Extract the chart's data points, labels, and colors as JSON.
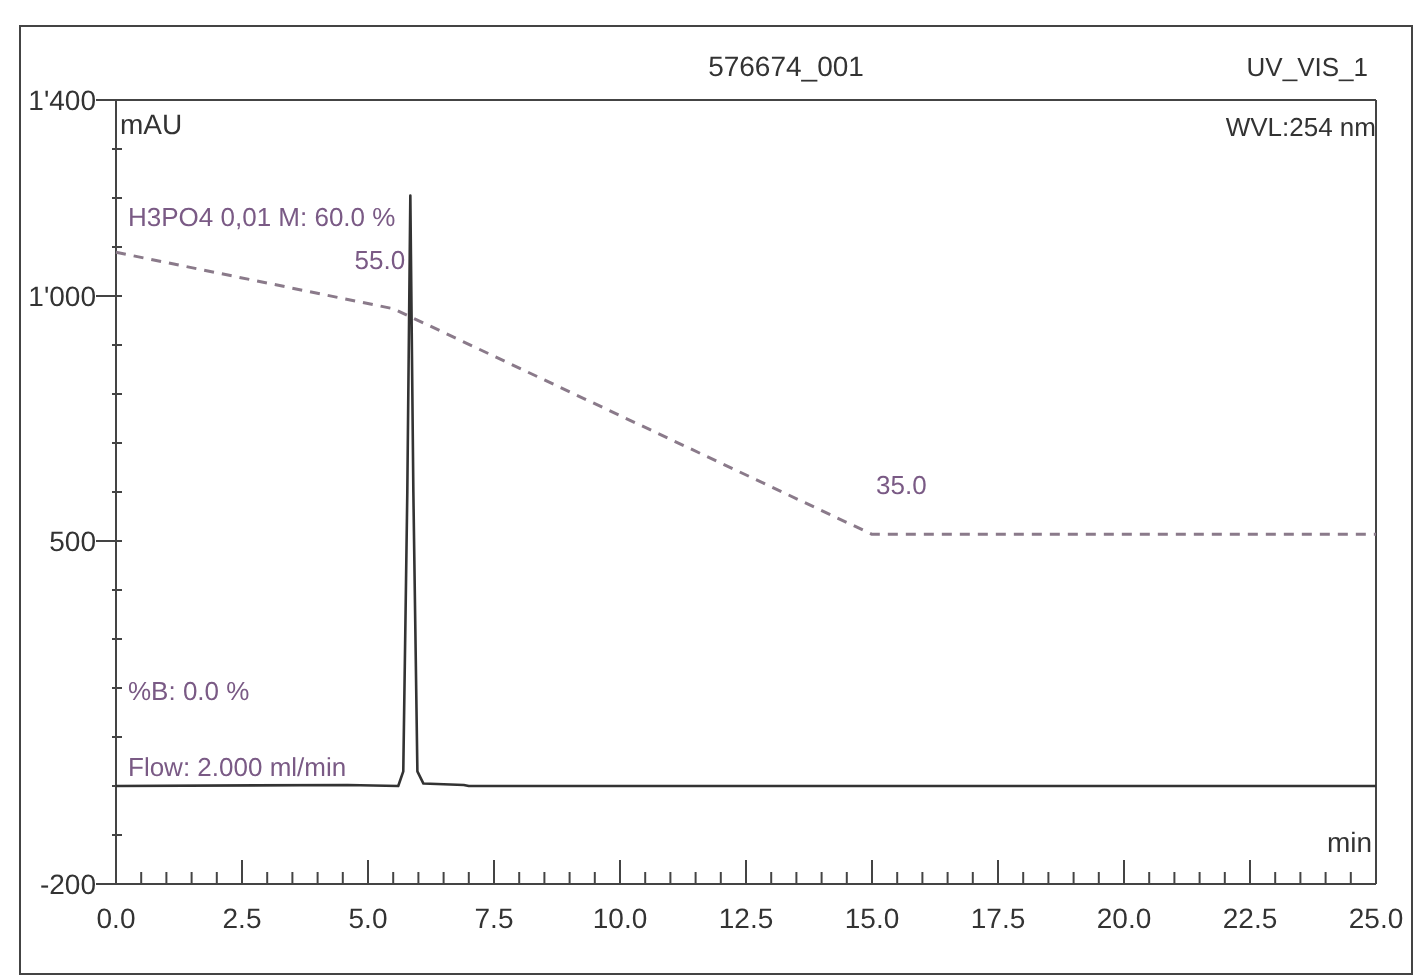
{
  "chart_data": {
    "type": "line",
    "title": "576674_001",
    "xlabel": "min",
    "ylabel": "mAU",
    "annotations": [
      "UV_VIS_1",
      "WVL:254 nm",
      "H3PO4 0,01 M: 60.0 %",
      "%B: 0.0 %",
      "Flow: 2.000 ml/min"
    ],
    "xlim": [
      0,
      25
    ],
    "ylim": [
      -200,
      1400
    ],
    "y2lim": [
      4,
      73.5
    ],
    "xticks": [
      {
        "value": 0,
        "label": "0.0"
      },
      {
        "value": 0.5,
        "label": null
      },
      {
        "value": 1,
        "label": null
      },
      {
        "value": 1.5,
        "label": null
      },
      {
        "value": 2,
        "label": null
      },
      {
        "value": 2.5,
        "label": "2.5"
      },
      {
        "value": 3,
        "label": null
      },
      {
        "value": 3.5,
        "label": null
      },
      {
        "value": 4,
        "label": null
      },
      {
        "value": 4.5,
        "label": null
      },
      {
        "value": 5,
        "label": "5.0"
      },
      {
        "value": 5.5,
        "label": null
      },
      {
        "value": 6,
        "label": null
      },
      {
        "value": 6.5,
        "label": null
      },
      {
        "value": 7,
        "label": null
      },
      {
        "value": 7.5,
        "label": "7.5"
      },
      {
        "value": 8,
        "label": null
      },
      {
        "value": 8.5,
        "label": null
      },
      {
        "value": 9,
        "label": null
      },
      {
        "value": 9.5,
        "label": null
      },
      {
        "value": 10,
        "label": "10.0"
      },
      {
        "value": 10.5,
        "label": null
      },
      {
        "value": 11,
        "label": null
      },
      {
        "value": 11.5,
        "label": null
      },
      {
        "value": 12,
        "label": null
      },
      {
        "value": 12.5,
        "label": "12.5"
      },
      {
        "value": 13,
        "label": null
      },
      {
        "value": 13.5,
        "label": null
      },
      {
        "value": 14,
        "label": null
      },
      {
        "value": 14.5,
        "label": null
      },
      {
        "value": 15,
        "label": "15.0"
      },
      {
        "value": 15.5,
        "label": null
      },
      {
        "value": 16,
        "label": null
      },
      {
        "value": 16.5,
        "label": null
      },
      {
        "value": 17,
        "label": null
      },
      {
        "value": 17.5,
        "label": "17.5"
      },
      {
        "value": 18,
        "label": null
      },
      {
        "value": 18.5,
        "label": null
      },
      {
        "value": 19,
        "label": null
      },
      {
        "value": 19.5,
        "label": null
      },
      {
        "value": 20,
        "label": "20.0"
      },
      {
        "value": 20.5,
        "label": null
      },
      {
        "value": 21,
        "label": null
      },
      {
        "value": 21.5,
        "label": null
      },
      {
        "value": 22,
        "label": null
      },
      {
        "value": 22.5,
        "label": "22.5"
      },
      {
        "value": 23,
        "label": null
      },
      {
        "value": 23.5,
        "label": null
      },
      {
        "value": 24,
        "label": null
      },
      {
        "value": 24.5,
        "label": null
      },
      {
        "value": 25,
        "label": "25.0"
      }
    ],
    "yticks": [
      -200,
      {
        "value": -100,
        "label": null
      },
      {
        "value": 0,
        "label": null
      },
      {
        "value": 100,
        "label": null
      },
      {
        "value": 200,
        "label": null
      },
      {
        "value": 300,
        "label": null
      },
      {
        "value": 400,
        "label": null
      },
      500,
      {
        "value": 600,
        "label": null
      },
      {
        "value": 700,
        "label": null
      },
      {
        "value": 800,
        "label": null
      },
      {
        "value": 900,
        "label": null
      },
      {
        "value": 1000,
        "label": "1'000"
      },
      {
        "value": 1100,
        "label": null
      },
      {
        "value": 1200,
        "label": null
      },
      {
        "value": 1300,
        "label": null
      },
      {
        "value": 1400,
        "label": "1'400"
      }
    ],
    "series": [
      {
        "color": "#333333",
        "line_style": "solid",
        "x": [
          0,
          4.6,
          5.6,
          5.7,
          5.78,
          5.84,
          5.9,
          5.98,
          6.1,
          6.9,
          7,
          25
        ],
        "values": [
          0,
          2,
          0,
          30,
          600,
          1205,
          600,
          30,
          5,
          2,
          0,
          0
        ]
      },
      {
        "color": "#8a7a8a",
        "line_style": "dashed",
        "axis": "y2",
        "x": [
          0,
          5.5,
          15,
          25
        ],
        "values": [
          60,
          55,
          35,
          35
        ],
        "value_labels": [
          null,
          "55.0",
          "35.0",
          null
        ]
      }
    ],
    "grid": false
  }
}
